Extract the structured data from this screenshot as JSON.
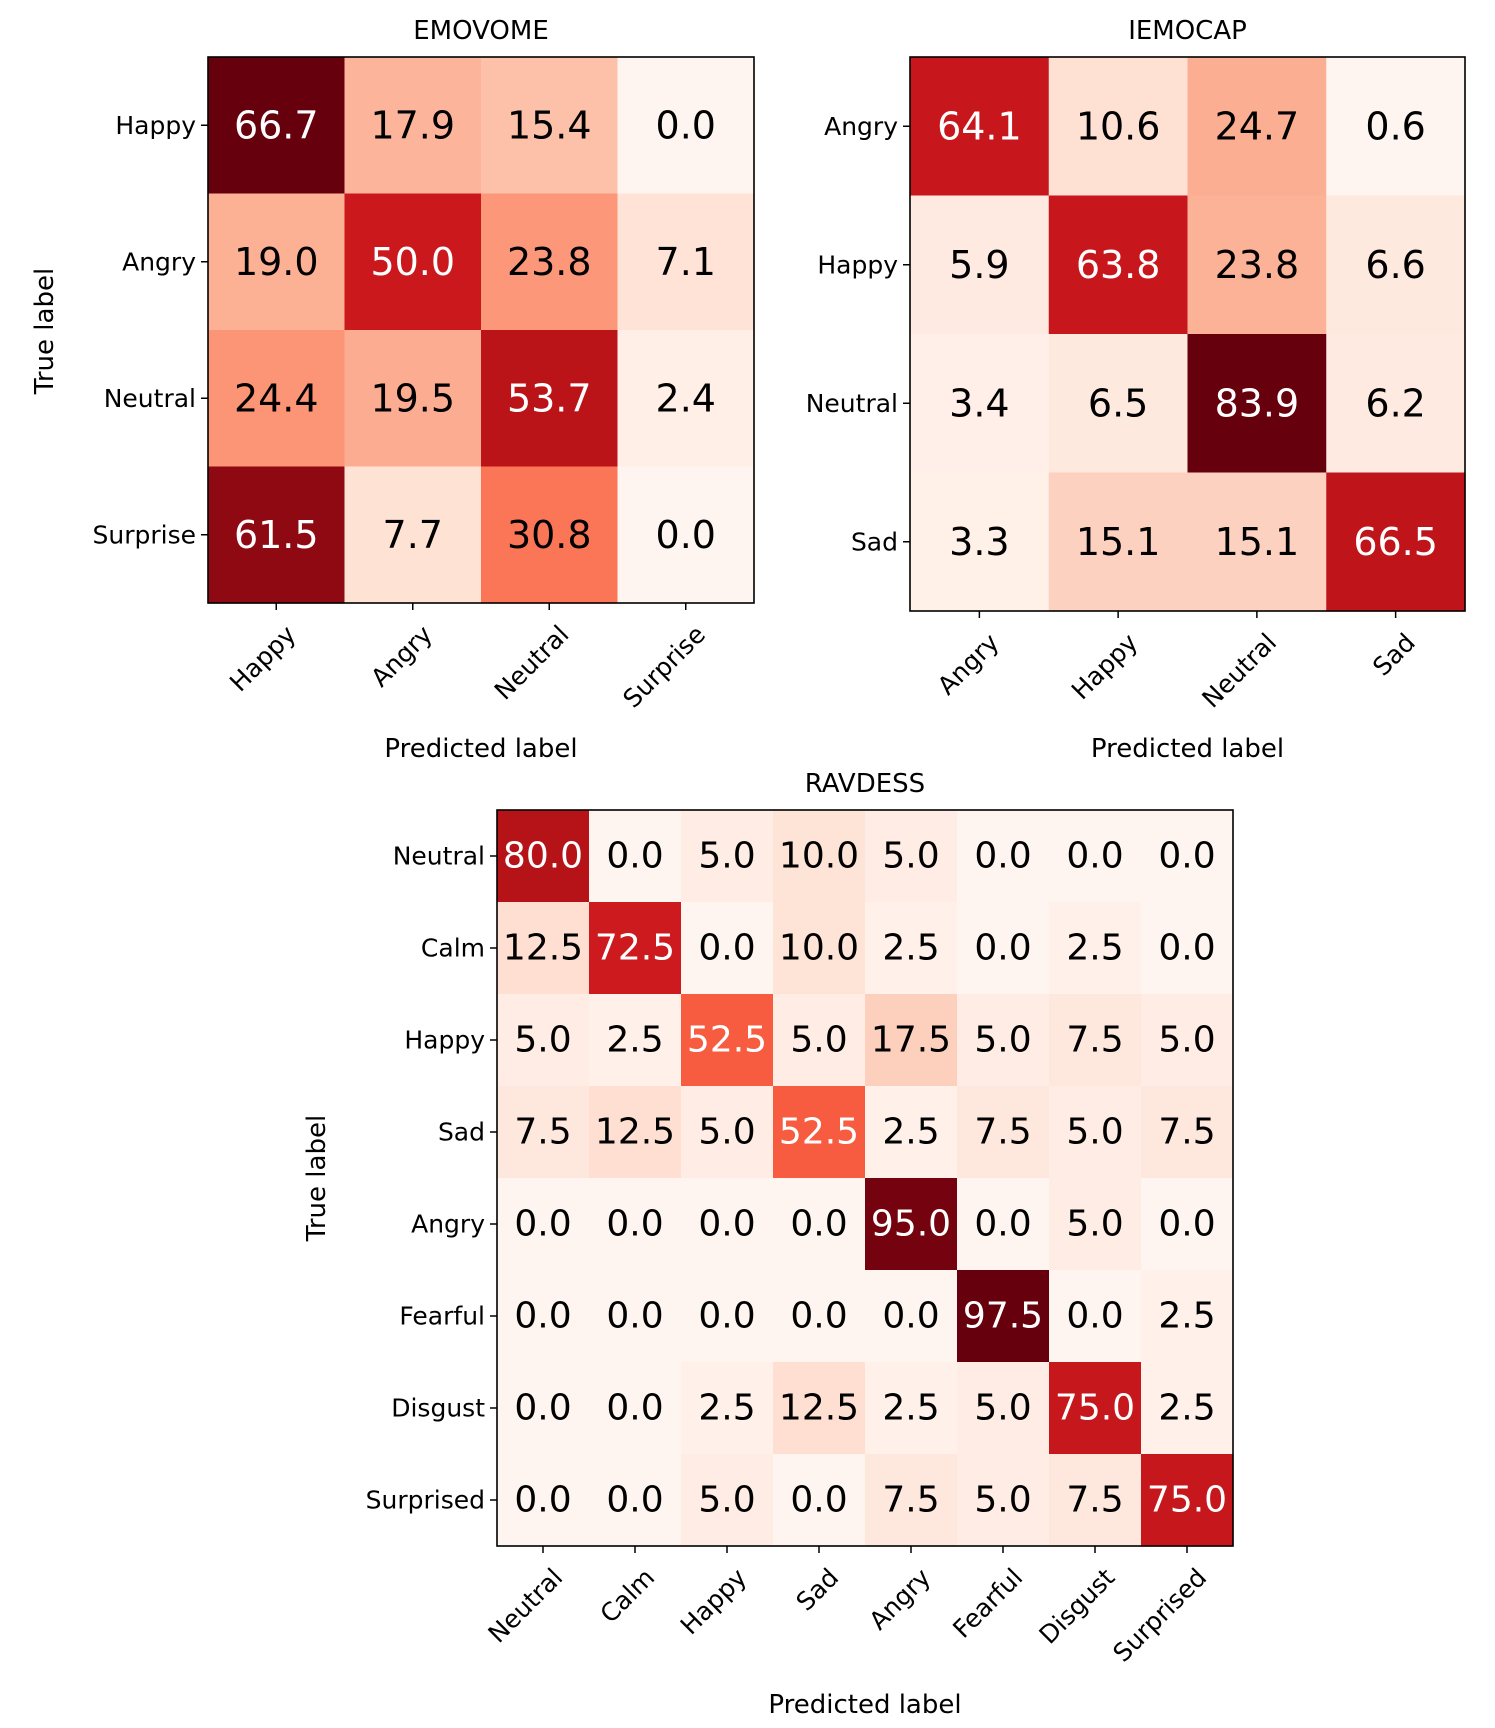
{
  "chart_data": [
    {
      "type": "heatmap",
      "title": "EMOVOME",
      "xlabel": "Predicted label",
      "ylabel": "True label",
      "x_categories": [
        "Happy",
        "Angry",
        "Neutral",
        "Surprise"
      ],
      "y_categories": [
        "Happy",
        "Angry",
        "Neutral",
        "Surprise"
      ],
      "values": [
        [
          66.7,
          17.9,
          15.4,
          0.0
        ],
        [
          19.0,
          50.0,
          23.8,
          7.1
        ],
        [
          24.4,
          19.5,
          53.7,
          2.4
        ],
        [
          61.5,
          7.7,
          30.8,
          0.0
        ]
      ],
      "colormap": "Reds",
      "cell_labels": [
        [
          "66.7",
          "17.9",
          "15.4",
          "0.0"
        ],
        [
          "19.0",
          "50.0",
          "23.8",
          "7.1"
        ],
        [
          "24.4",
          "19.5",
          "53.7",
          "2.4"
        ],
        [
          "61.5",
          "7.7",
          "30.8",
          "0.0"
        ]
      ]
    },
    {
      "type": "heatmap",
      "title": "IEMOCAP",
      "xlabel": "Predicted label",
      "ylabel": "",
      "x_categories": [
        "Angry",
        "Happy",
        "Neutral",
        "Sad"
      ],
      "y_categories": [
        "Angry",
        "Happy",
        "Neutral",
        "Sad"
      ],
      "values": [
        [
          64.1,
          10.6,
          24.7,
          0.6
        ],
        [
          5.9,
          63.8,
          23.8,
          6.6
        ],
        [
          3.4,
          6.5,
          83.9,
          6.2
        ],
        [
          3.3,
          15.1,
          15.1,
          66.5
        ]
      ],
      "colormap": "Reds",
      "cell_labels": [
        [
          "64.1",
          "10.6",
          "24.7",
          "0.6"
        ],
        [
          "5.9",
          "63.8",
          "23.8",
          "6.6"
        ],
        [
          "3.4",
          "6.5",
          "83.9",
          "6.2"
        ],
        [
          "3.3",
          "15.1",
          "15.1",
          "66.5"
        ]
      ]
    },
    {
      "type": "heatmap",
      "title": "RAVDESS",
      "xlabel": "Predicted label",
      "ylabel": "True label",
      "x_categories": [
        "Neutral",
        "Calm",
        "Happy",
        "Sad",
        "Angry",
        "Fearful",
        "Disgust",
        "Surprised"
      ],
      "y_categories": [
        "Neutral",
        "Calm",
        "Happy",
        "Sad",
        "Angry",
        "Fearful",
        "Disgust",
        "Surprised"
      ],
      "values": [
        [
          80.0,
          0.0,
          5.0,
          10.0,
          5.0,
          0.0,
          0.0,
          0.0
        ],
        [
          12.5,
          72.5,
          0.0,
          10.0,
          2.5,
          0.0,
          2.5,
          0.0
        ],
        [
          5.0,
          2.5,
          52.5,
          5.0,
          17.5,
          5.0,
          7.5,
          5.0
        ],
        [
          7.5,
          12.5,
          5.0,
          52.5,
          2.5,
          7.5,
          5.0,
          7.5
        ],
        [
          0.0,
          0.0,
          0.0,
          0.0,
          95.0,
          0.0,
          5.0,
          0.0
        ],
        [
          0.0,
          0.0,
          0.0,
          0.0,
          0.0,
          97.5,
          0.0,
          2.5
        ],
        [
          0.0,
          0.0,
          2.5,
          12.5,
          2.5,
          5.0,
          75.0,
          2.5
        ],
        [
          0.0,
          0.0,
          5.0,
          0.0,
          7.5,
          5.0,
          7.5,
          75.0
        ]
      ],
      "colormap": "Reds",
      "cell_labels": [
        [
          "80.0",
          "0.0",
          "5.0",
          "10.0",
          "5.0",
          "0.0",
          "0.0",
          "0.0"
        ],
        [
          "12.5",
          "72.5",
          "0.0",
          "10.0",
          "2.5",
          "0.0",
          "2.5",
          "0.0"
        ],
        [
          "5.0",
          "2.5",
          "52.5",
          "5.0",
          "17.5",
          "5.0",
          "7.5",
          "5.0"
        ],
        [
          "7.5",
          "12.5",
          "5.0",
          "52.5",
          "2.5",
          "7.5",
          "5.0",
          "7.5"
        ],
        [
          "0.0",
          "0.0",
          "0.0",
          "0.0",
          "95.0",
          "0.0",
          "5.0",
          "0.0"
        ],
        [
          "0.0",
          "0.0",
          "0.0",
          "0.0",
          "0.0",
          "97.5",
          "0.0",
          "2.5"
        ],
        [
          "0.0",
          "0.0",
          "2.5",
          "12.5",
          "2.5",
          "5.0",
          "75.0",
          "2.5"
        ],
        [
          "0.0",
          "0.0",
          "5.0",
          "0.0",
          "7.5",
          "5.0",
          "7.5",
          "75.0"
        ]
      ]
    }
  ]
}
